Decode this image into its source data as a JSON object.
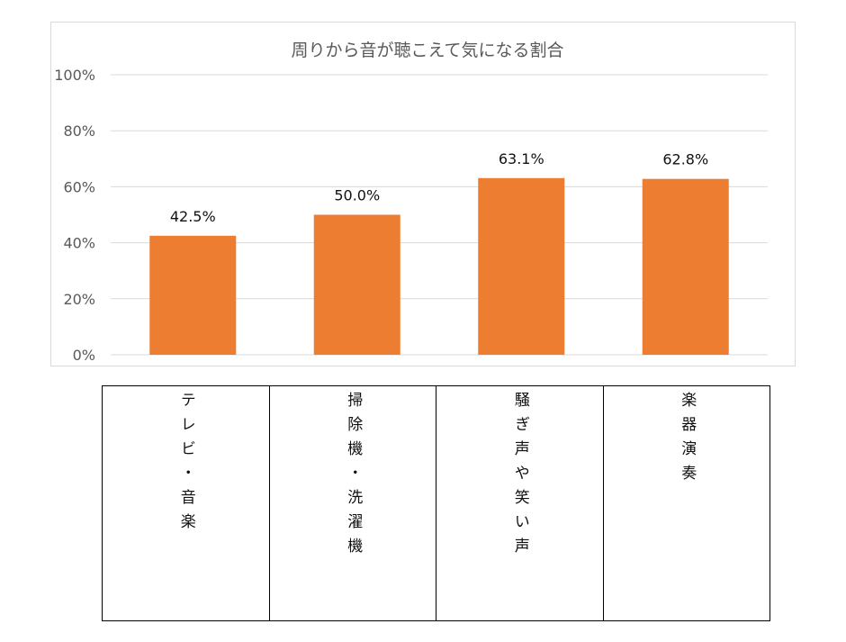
{
  "chart_data": {
    "type": "bar",
    "title": "周りから音が聴こえて気になる割合",
    "categories": [
      "テレビ・音楽",
      "掃除機・洗濯機",
      "騒ぎ声や笑い声",
      "楽器演奏"
    ],
    "values": [
      42.5,
      50.0,
      63.1,
      62.8
    ],
    "data_labels": [
      "42.5%",
      "50.0%",
      "63.1%",
      "62.8%"
    ],
    "y_ticks": [
      "0%",
      "20%",
      "40%",
      "60%",
      "80%",
      "100%"
    ],
    "ylim": [
      0,
      100
    ],
    "xlabel": "",
    "ylabel": "",
    "grid": true,
    "legend": "none",
    "bar_color": "#ed7d31",
    "grid_color": "#d9d9d9"
  }
}
